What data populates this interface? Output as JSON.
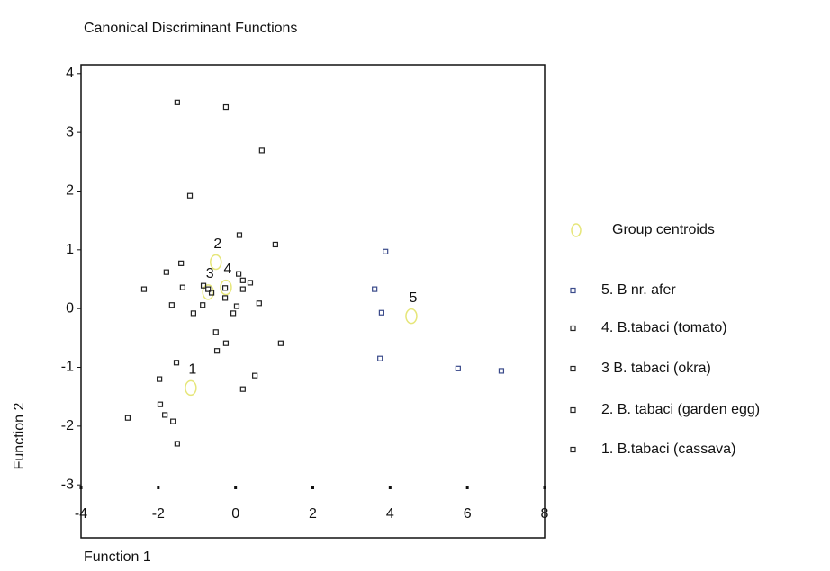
{
  "chart_data": {
    "type": "scatter",
    "title": "Canonical Discriminant Functions",
    "x_label": "Function 1",
    "y_label": "Function 2",
    "xlim": [
      -4,
      8
    ],
    "ylim": [
      -3.9,
      4.15
    ],
    "xticks": [
      -4,
      -2,
      0,
      2,
      4,
      6,
      8
    ],
    "yticks": [
      -3,
      -2,
      -1,
      0,
      1,
      2,
      3,
      4
    ],
    "series": [
      {
        "name": "Group centroids",
        "color": "#e6e67a",
        "marker": "circle",
        "x": [
          4.55,
          -1.16,
          -0.51,
          -0.71,
          -0.25
        ],
        "y": [
          -0.13,
          -1.35,
          0.79,
          0.28,
          0.36
        ],
        "labels": [
          "5",
          "1",
          "2",
          "3",
          "4"
        ]
      },
      {
        "name": "5.  B nr. afer",
        "color": "#3a4a8a",
        "marker": "square",
        "x": [
          3.6,
          3.78,
          3.88,
          3.74,
          5.76,
          6.88
        ],
        "y": [
          0.33,
          -0.07,
          0.97,
          -0.85,
          -1.02,
          -1.06
        ]
      },
      {
        "name": "4. B.tabaci (tomato)",
        "color": "#222222",
        "marker": "square",
        "x": [
          -0.27,
          0.08,
          0.19,
          0.19,
          0.38,
          0.61,
          -0.27,
          -0.06,
          0.03,
          -0.51,
          -0.25,
          -0.48,
          1.17
        ],
        "y": [
          0.35,
          0.59,
          0.48,
          0.33,
          0.44,
          0.09,
          0.18,
          -0.08,
          0.04,
          -0.4,
          -0.59,
          -0.72,
          -0.59
        ]
      },
      {
        "name": "3 B. tabaci (okra)",
        "color": "#222222",
        "marker": "square",
        "x": [
          -1.79,
          -2.37,
          -1.37,
          -0.83,
          -0.71,
          -0.62,
          -1.65,
          -1.09,
          -0.85
        ],
        "y": [
          0.62,
          0.33,
          0.36,
          0.39,
          0.33,
          0.27,
          0.06,
          -0.08,
          0.06
        ]
      },
      {
        "name": "2. B. tabaci (garden egg)",
        "color": "#222222",
        "marker": "square",
        "x": [
          -1.51,
          -0.25,
          0.68,
          -1.18,
          0.1,
          1.03,
          -1.41
        ],
        "y": [
          3.51,
          3.43,
          2.69,
          1.92,
          1.25,
          1.09,
          0.77
        ]
      },
      {
        "name": "1. B.tabaci (cassava)",
        "color": "#222222",
        "marker": "square",
        "x": [
          -1.53,
          0.5,
          0.19,
          -1.97,
          -1.95,
          -1.83,
          -1.62,
          -2.79,
          -1.51
        ],
        "y": [
          -0.92,
          -1.14,
          -1.37,
          -1.2,
          -1.63,
          -1.81,
          -1.92,
          -1.86,
          -2.3
        ]
      }
    ]
  }
}
